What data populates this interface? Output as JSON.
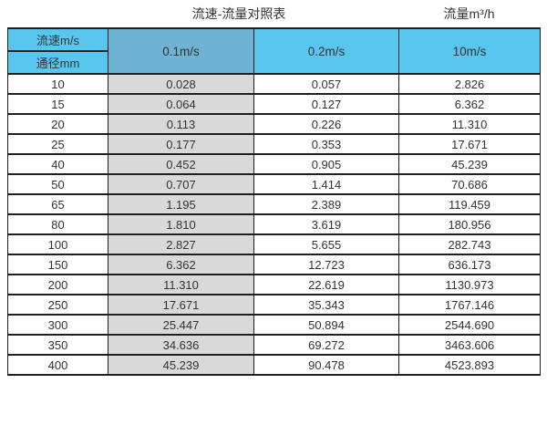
{
  "page": {
    "title": "流速-流量对照表",
    "unit_label": "流量m³/h"
  },
  "table": {
    "header": {
      "corner_top": "流速m/s",
      "corner_bottom": "通径mm",
      "velocity_columns": [
        "0.1m/s",
        "0.2m/s",
        "10m/s"
      ]
    },
    "rows": [
      {
        "diameter": "10",
        "values": [
          "0.028",
          "0.057",
          "2.826"
        ]
      },
      {
        "diameter": "15",
        "values": [
          "0.064",
          "0.127",
          "6.362"
        ]
      },
      {
        "diameter": "20",
        "values": [
          "0.113",
          "0.226",
          "11.310"
        ]
      },
      {
        "diameter": "25",
        "values": [
          "0.177",
          "0.353",
          "17.671"
        ]
      },
      {
        "diameter": "40",
        "values": [
          "0.452",
          "0.905",
          "45.239"
        ]
      },
      {
        "diameter": "50",
        "values": [
          "0.707",
          "1.414",
          "70.686"
        ]
      },
      {
        "diameter": "65",
        "values": [
          "1.195",
          "2.389",
          "119.459"
        ]
      },
      {
        "diameter": "80",
        "values": [
          "1.810",
          "3.619",
          "180.956"
        ]
      },
      {
        "diameter": "100",
        "values": [
          "2.827",
          "5.655",
          "282.743"
        ]
      },
      {
        "diameter": "150",
        "values": [
          "6.362",
          "12.723",
          "636.173"
        ]
      },
      {
        "diameter": "200",
        "values": [
          "11.310",
          "22.619",
          "1130.973"
        ]
      },
      {
        "diameter": "250",
        "values": [
          "17.671",
          "35.343",
          "1767.146"
        ]
      },
      {
        "diameter": "300",
        "values": [
          "25.447",
          "50.894",
          "2544.690"
        ]
      },
      {
        "diameter": "350",
        "values": [
          "34.636",
          "69.272",
          "3463.606"
        ]
      },
      {
        "diameter": "400",
        "values": [
          "45.239",
          "90.478",
          "4523.893"
        ]
      }
    ]
  },
  "colors": {
    "header_blue": "#58C6EE",
    "header_blue_dark": "#6FB3D4",
    "col_grey": "#D9D9D9",
    "border": "#1F1F1F",
    "text": "#333333"
  },
  "chart_data": {
    "type": "table",
    "title": "流速-流量对照表",
    "unit_note": "流量m³/h",
    "col_header_label": "流速m/s",
    "row_header_label": "通径mm",
    "columns": [
      "0.1m/s",
      "0.2m/s",
      "10m/s"
    ],
    "diameters_mm": [
      10,
      15,
      20,
      25,
      40,
      50,
      65,
      80,
      100,
      150,
      200,
      250,
      300,
      350,
      400
    ],
    "series": [
      {
        "name": "0.1m/s",
        "values": [
          0.028,
          0.064,
          0.113,
          0.177,
          0.452,
          0.707,
          1.195,
          1.81,
          2.827,
          6.362,
          11.31,
          17.671,
          25.447,
          34.636,
          45.239
        ]
      },
      {
        "name": "0.2m/s",
        "values": [
          0.057,
          0.127,
          0.226,
          0.353,
          0.905,
          1.414,
          2.389,
          3.619,
          5.655,
          12.723,
          22.619,
          35.343,
          50.894,
          69.272,
          90.478
        ]
      },
      {
        "name": "10m/s",
        "values": [
          2.826,
          6.362,
          11.31,
          17.671,
          45.239,
          70.686,
          119.459,
          180.956,
          282.743,
          636.173,
          1130.973,
          1767.146,
          2544.69,
          3463.606,
          4523.893
        ]
      }
    ]
  }
}
